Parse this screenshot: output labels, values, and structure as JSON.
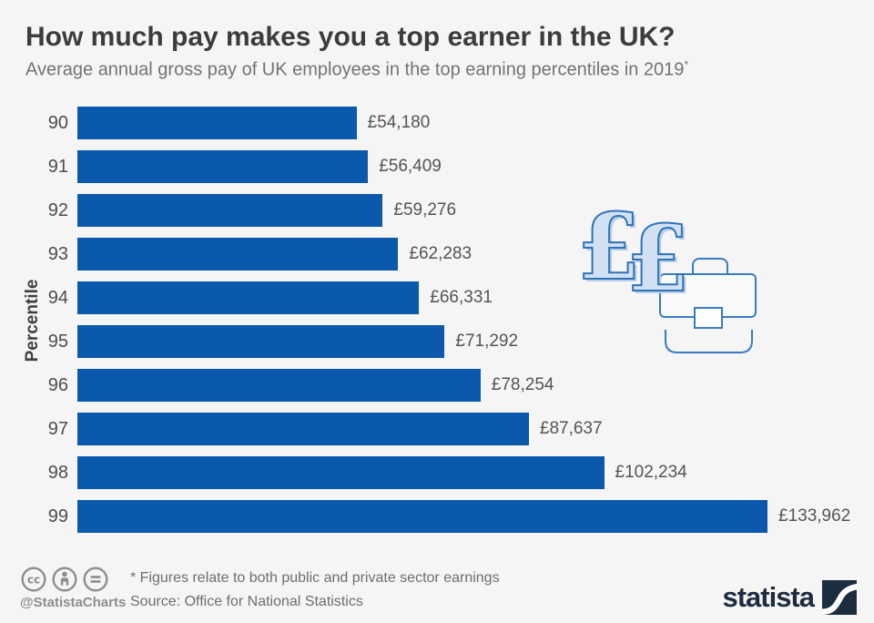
{
  "header": {
    "title": "How much pay makes you a top earner in the UK?",
    "subtitle": "Average annual gross pay of UK employees in the top earning percentiles in 2019",
    "note_marker": "*"
  },
  "chart_data": {
    "type": "bar",
    "orientation": "horizontal",
    "title": "How much pay makes you a top earner in the UK?",
    "xlabel": "",
    "ylabel": "Percentile",
    "categories": [
      "90",
      "91",
      "92",
      "93",
      "94",
      "95",
      "96",
      "97",
      "98",
      "99"
    ],
    "values": [
      54180,
      56409,
      59276,
      62283,
      66331,
      71292,
      78254,
      87637,
      102234,
      133962
    ],
    "value_labels": [
      "£54,180",
      "£56,409",
      "£59,276",
      "£62,283",
      "£66,331",
      "£71,292",
      "£78,254",
      "£87,637",
      "£102,234",
      "£133,962"
    ],
    "xlim": [
      0,
      133962
    ],
    "grid": false,
    "legend": false,
    "bar_color": "#0b59ac"
  },
  "illustration": {
    "name": "two pound signs and briefcase",
    "pound_fill": "#d2e1f2",
    "pound_shadow": "#b9cde5",
    "outline_color": "#2e73ba"
  },
  "footer": {
    "cc_icons": [
      "cc-license",
      "attribution",
      "equals"
    ],
    "credit": "@StatistaCharts",
    "footnote": "* Figures relate to both public and private sector earnings",
    "source": "Source: Office for National Statistics",
    "logo_text": "statista"
  },
  "colors": {
    "background": "#f5f5f5",
    "bar": "#0b59ac",
    "title_text": "#3c3c3c",
    "subtitle_text": "#737373",
    "label_text": "#4d4d4d",
    "footer_text": "#6e6e6e",
    "logo_navy": "#1d2d40"
  }
}
